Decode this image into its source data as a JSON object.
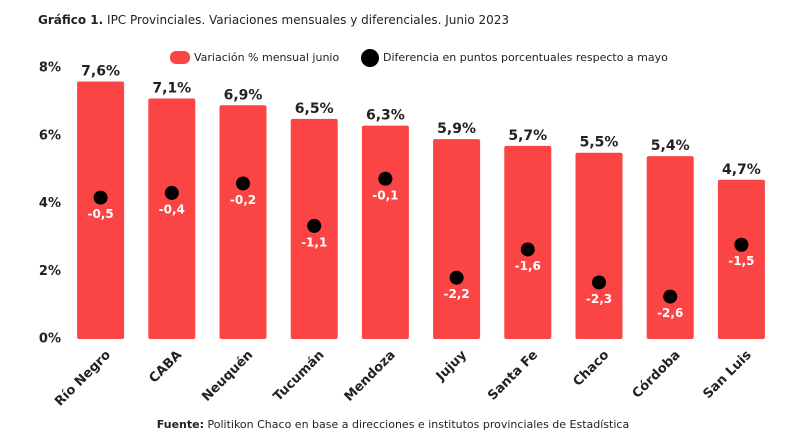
{
  "chart_data": {
    "type": "bar",
    "title_label": "Gráfico 1.",
    "title": "IPC Provinciales. Variaciones mensuales y diferenciales. Junio 2023",
    "source_label": "Fuente:",
    "source": "Politikon Chaco en base a direcciones e institutos provinciales de Estadística",
    "categories": [
      "Río Negro",
      "CABA",
      "Neuquén",
      "Tucumán",
      "Mendoza",
      "Jujuy",
      "Santa Fe",
      "Chaco",
      "Córdoba",
      "San Luis"
    ],
    "series": [
      {
        "name": "Variación % mensual junio",
        "color": "#fb4444",
        "values": [
          7.6,
          7.1,
          6.9,
          6.5,
          6.3,
          5.9,
          5.7,
          5.5,
          5.4,
          4.7
        ],
        "value_labels": [
          "7,6%",
          "7,1%",
          "6,9%",
          "6,5%",
          "6,3%",
          "5,9%",
          "5,7%",
          "5,5%",
          "5,4%",
          "4,7%"
        ]
      },
      {
        "name": "Diferencia en puntos porcentuales respecto a mayo",
        "color": "#000000",
        "axis": "y2",
        "values": [
          -0.5,
          -0.4,
          -0.2,
          -1.1,
          -0.1,
          -2.2,
          -1.6,
          -2.3,
          -2.6,
          -1.5
        ],
        "value_labels": [
          "-0,5",
          "-0,4",
          "-0,2",
          "-1,1",
          "-0,1",
          "-2,2",
          "-1,6",
          "-2,3",
          "-2,6",
          "-1,5"
        ]
      }
    ],
    "ylim": [
      0,
      8
    ],
    "yticks": [
      {
        "value": 0,
        "label": "0%"
      },
      {
        "value": 2,
        "label": "2%"
      },
      {
        "value": 4,
        "label": "4%"
      },
      {
        "value": 6,
        "label": "6%"
      },
      {
        "value": 8,
        "label": "8%"
      }
    ],
    "y2lim": [
      -3.5,
      2.25
    ]
  }
}
